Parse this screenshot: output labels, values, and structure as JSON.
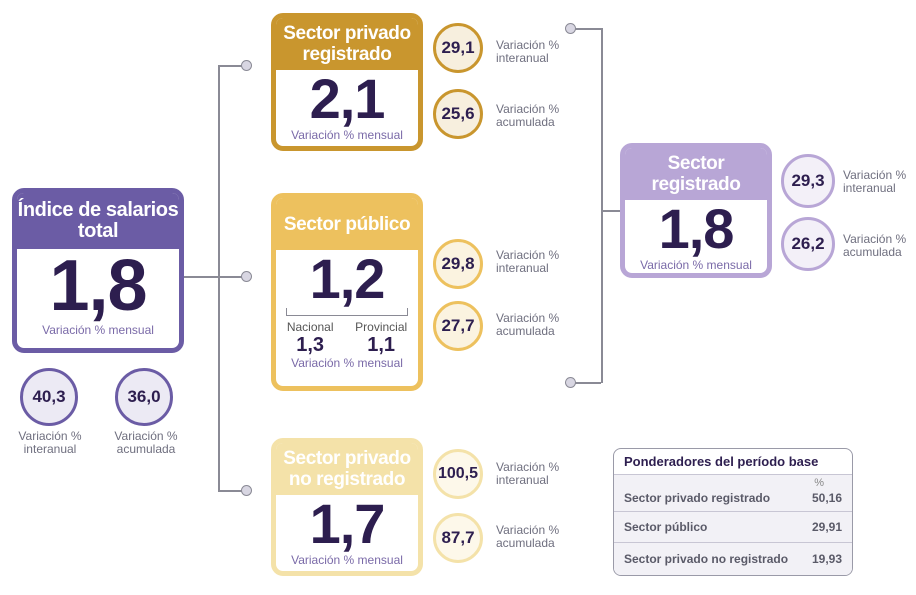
{
  "total": {
    "title": "Índice de salarios total",
    "value": "1,8",
    "sub": "Variación % mensual",
    "interanual": "40,3",
    "acumulada": "36,0",
    "lbl_interanual": "Variación % interanual",
    "lbl_acumulada": "Variación % acumulada"
  },
  "privado_registrado": {
    "title": "Sector privado registrado",
    "value": "2,1",
    "sub": "Variación % mensual",
    "interanual": "29,1",
    "acumulada": "25,6",
    "lbl_interanual": "Variación % interanual",
    "lbl_acumulada": "Variación % acumulada"
  },
  "publico": {
    "title": "Sector público",
    "value": "1,2",
    "nacional_label": "Nacional",
    "nacional": "1,3",
    "provincial_label": "Provincial",
    "provincial": "1,1",
    "sub": "Variación % mensual",
    "interanual": "29,8",
    "acumulada": "27,7",
    "lbl_interanual": "Variación % interanual",
    "lbl_acumulada": "Variación % acumulada"
  },
  "no_registrado": {
    "title": "Sector privado no registrado",
    "value": "1,7",
    "sub": "Variación % mensual",
    "interanual": "100,5",
    "acumulada": "87,7",
    "lbl_interanual": "Variación % interanual",
    "lbl_acumulada": "Variación % acumulada"
  },
  "registrado": {
    "title": "Sector registrado",
    "value": "1,8",
    "sub": "Variación % mensual",
    "interanual": "29,3",
    "acumulada": "26,2",
    "lbl_interanual": "Variación % interanual",
    "lbl_acumulada": "Variación % acumulada"
  },
  "ponderadores": {
    "title": "Ponderadores del período base",
    "unit": "%",
    "rows": [
      {
        "name": "Sector privado registrado",
        "value": "50,16"
      },
      {
        "name": "Sector público",
        "value": "29,91"
      },
      {
        "name": "Sector privado no registrado",
        "value": "19,93"
      }
    ]
  },
  "colors": {
    "total": "#6b5ca5",
    "privado_registrado": "#c9962e",
    "publico": "#edc15e",
    "no_registrado": "#f4e2a9",
    "registrado": "#b8a6d6"
  }
}
